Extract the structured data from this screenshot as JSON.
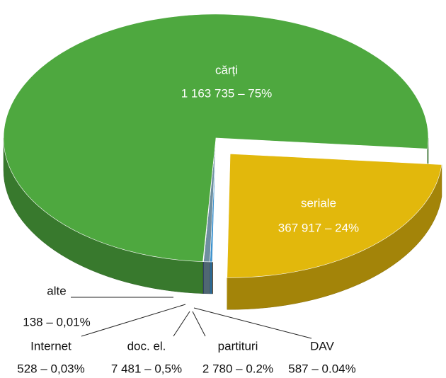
{
  "chart_data": {
    "type": "pie",
    "categories": [
      "cărți",
      "seriale",
      "DAV",
      "partituri",
      "doc. el.",
      "Internet",
      "alte"
    ],
    "values": [
      1163735,
      367917,
      587,
      2780,
      7481,
      528,
      138
    ],
    "value_labels": [
      "1 163 735 – 75%",
      "367 917 – 24%",
      "587 – 0.04%",
      "2 780 – 0.2%",
      "7 481 – 0,5%",
      "528 – 0,03%",
      "138 – 0,01%"
    ],
    "colors": [
      "#4ea83f",
      "#e2b80c",
      "#b8691c",
      "#3d93cf",
      "#6f8fa0",
      "#2a4f9a",
      "#c62828"
    ]
  }
}
